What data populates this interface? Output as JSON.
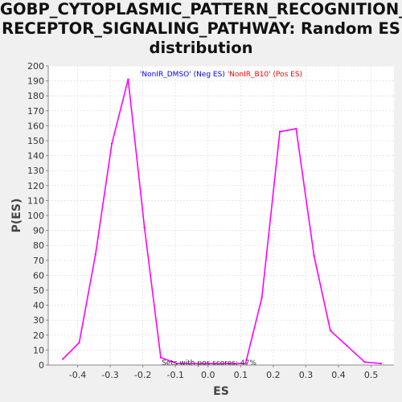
{
  "chart_data": {
    "type": "line",
    "title": [
      "GOBP_CYTOPLASMIC_PATTERN_RECOGNITION_",
      "RECEPTOR_SIGNALING_PATHWAY: Random ES",
      "distribution"
    ],
    "xlabel": "ES",
    "ylabel": "P(ES)",
    "xlim": [
      -0.49,
      0.57
    ],
    "ylim": [
      0,
      200
    ],
    "xticks": [
      -0.4,
      -0.3,
      -0.2,
      -0.1,
      0.0,
      0.1,
      0.2,
      0.3,
      0.4,
      0.5
    ],
    "xtick_labels": [
      "-0.4",
      "-0.3",
      "-0.2",
      "-0.1",
      "0.0",
      "0.1",
      "0.2",
      "0.3",
      "0.4",
      "0.5"
    ],
    "yticks": [
      0,
      10,
      20,
      30,
      40,
      50,
      60,
      70,
      80,
      90,
      100,
      110,
      120,
      130,
      140,
      150,
      160,
      170,
      180,
      190,
      200
    ],
    "ytick_labels": [
      "0",
      "10",
      "20",
      "30",
      "40",
      "50",
      "60",
      "70",
      "80",
      "90",
      "100",
      "110",
      "120",
      "130",
      "140",
      "150",
      "160",
      "170",
      "180",
      "190",
      "200"
    ],
    "grid": true,
    "legend": [
      {
        "label": "'NonIR_DMSO' (Neg ES)",
        "color": "#0000ff"
      },
      {
        "label": "'NonIR_B10' (Pos ES)",
        "color": "#ff0000"
      }
    ],
    "legend_position": "top-center",
    "series": [
      {
        "color": "#ff00ff",
        "x": [
          -0.445,
          -0.395,
          -0.345,
          -0.295,
          -0.245,
          -0.195,
          -0.145,
          -0.095,
          0.115,
          0.165,
          0.22,
          0.27,
          0.325,
          0.375,
          0.425,
          0.48,
          0.53
        ],
        "y": [
          4,
          15,
          74,
          148,
          191,
          92,
          5,
          1,
          1,
          45,
          156,
          158,
          73,
          23,
          13,
          2,
          1
        ]
      }
    ],
    "annotation": "Sets with pos scores: 47%"
  }
}
